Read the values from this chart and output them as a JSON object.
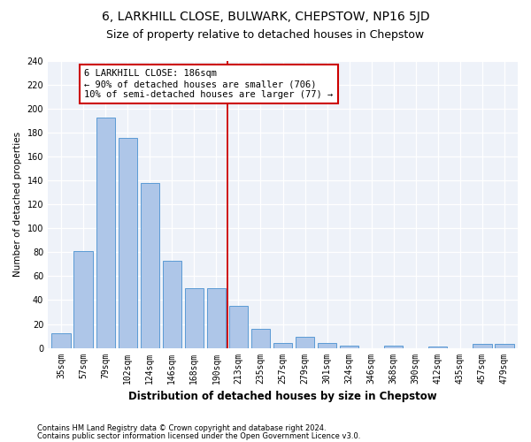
{
  "title1": "6, LARKHILL CLOSE, BULWARK, CHEPSTOW, NP16 5JD",
  "title2": "Size of property relative to detached houses in Chepstow",
  "xlabel": "Distribution of detached houses by size in Chepstow",
  "ylabel": "Number of detached properties",
  "categories": [
    "35sqm",
    "57sqm",
    "79sqm",
    "102sqm",
    "124sqm",
    "146sqm",
    "168sqm",
    "190sqm",
    "213sqm",
    "235sqm",
    "257sqm",
    "279sqm",
    "301sqm",
    "324sqm",
    "346sqm",
    "368sqm",
    "390sqm",
    "412sqm",
    "435sqm",
    "457sqm",
    "479sqm"
  ],
  "values": [
    12,
    81,
    193,
    176,
    138,
    73,
    50,
    50,
    35,
    16,
    4,
    9,
    4,
    2,
    0,
    2,
    0,
    1,
    0,
    3,
    3
  ],
  "bar_color": "#aec6e8",
  "bar_edge_color": "#5b9bd5",
  "vline_x": 7.5,
  "vline_color": "#cc0000",
  "annotation_line1": "6 LARKHILL CLOSE: 186sqm",
  "annotation_line2": "← 90% of detached houses are smaller (706)",
  "annotation_line3": "10% of semi-detached houses are larger (77) →",
  "annotation_box_color": "#ffffff",
  "annotation_box_edge": "#cc0000",
  "footer1": "Contains HM Land Registry data © Crown copyright and database right 2024.",
  "footer2": "Contains public sector information licensed under the Open Government Licence v3.0.",
  "ylim": [
    0,
    240
  ],
  "yticks": [
    0,
    20,
    40,
    60,
    80,
    100,
    120,
    140,
    160,
    180,
    200,
    220,
    240
  ],
  "plot_bg": "#eef2f9",
  "grid_color": "#ffffff",
  "title1_fontsize": 10,
  "title2_fontsize": 9,
  "annotation_fontsize": 7.5,
  "xlabel_fontsize": 8.5,
  "ylabel_fontsize": 7.5,
  "tick_fontsize": 7,
  "footer_fontsize": 6
}
